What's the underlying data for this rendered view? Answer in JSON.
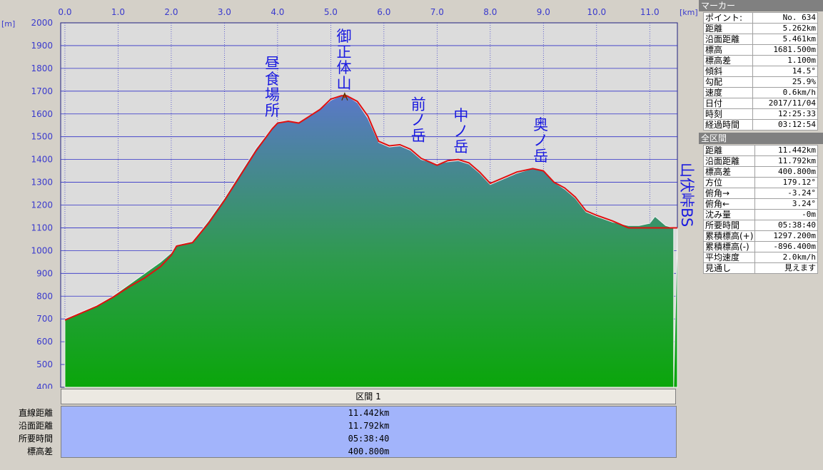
{
  "chart_data": {
    "type": "area",
    "x_unit": "[km]",
    "y_unit": "[m]",
    "xlim": [
      -0.08,
      11.52
    ],
    "ylim": [
      400,
      2000
    ],
    "x_ticks": [
      "0.0",
      "1.0",
      "2.0",
      "3.0",
      "4.0",
      "5.0",
      "6.0",
      "7.0",
      "8.0",
      "9.0",
      "10.0",
      "11.0"
    ],
    "y_ticks": [
      "2000",
      "1900",
      "1800",
      "1700",
      "1600",
      "1500",
      "1400",
      "1300",
      "1200",
      "1100",
      "1000",
      "900",
      "800",
      "700",
      "600",
      "500",
      "400"
    ],
    "grid": true,
    "series": [
      {
        "color": "#2e9e3a",
        "x": [
          0,
          0.3,
          0.6,
          0.9,
          1.2,
          1.5,
          1.8,
          2.0,
          2.1,
          2.4,
          2.7,
          3.0,
          3.3,
          3.6,
          3.9,
          4.0,
          4.2,
          4.4,
          4.6,
          4.8,
          5.0,
          5.2,
          5.3,
          5.5,
          5.7,
          5.9,
          6.1,
          6.3,
          6.5,
          6.7,
          7.0,
          7.2,
          7.4,
          7.6,
          7.8,
          8.0,
          8.2,
          8.5,
          8.8,
          9.0,
          9.2,
          9.4,
          9.6,
          9.8,
          10.0,
          10.3,
          10.6,
          10.8,
          11.0,
          11.1,
          11.3,
          11.45
        ],
        "y": [
          700,
          730,
          760,
          800,
          850,
          900,
          950,
          990,
          1025,
          1040,
          1130,
          1230,
          1340,
          1450,
          1540,
          1565,
          1570,
          1560,
          1590,
          1620,
          1660,
          1680,
          1680,
          1650,
          1580,
          1475,
          1455,
          1460,
          1440,
          1400,
          1380,
          1390,
          1395,
          1380,
          1340,
          1290,
          1310,
          1340,
          1360,
          1350,
          1300,
          1270,
          1230,
          1170,
          1150,
          1125,
          1110,
          1110,
          1120,
          1150,
          1110,
          1100
        ]
      },
      {
        "color": "#e01010",
        "x": [
          0,
          0.3,
          0.6,
          0.9,
          1.2,
          1.5,
          1.8,
          2.0,
          2.1,
          2.4,
          2.7,
          3.0,
          3.3,
          3.6,
          3.9,
          4.0,
          4.2,
          4.4,
          4.6,
          4.8,
          5.0,
          5.2,
          5.3,
          5.5,
          5.7,
          5.9,
          6.1,
          6.3,
          6.5,
          6.7,
          7.0,
          7.2,
          7.4,
          7.6,
          7.8,
          8.0,
          8.2,
          8.5,
          8.8,
          9.0,
          9.2,
          9.4,
          9.6,
          9.8,
          10.0,
          10.3,
          10.6,
          10.8,
          11.0,
          11.1,
          11.3,
          11.45
        ],
        "y": [
          695,
          725,
          755,
          795,
          840,
          880,
          930,
          980,
          1020,
          1035,
          1120,
          1220,
          1330,
          1440,
          1535,
          1560,
          1568,
          1560,
          1590,
          1620,
          1665,
          1680,
          1680,
          1655,
          1590,
          1480,
          1460,
          1465,
          1445,
          1405,
          1375,
          1395,
          1400,
          1385,
          1345,
          1295,
          1315,
          1345,
          1360,
          1350,
          1300,
          1275,
          1235,
          1175,
          1155,
          1130,
          1100,
          1100,
          1100,
          1100,
          1100,
          1100
        ]
      }
    ],
    "annotations": [
      {
        "text": "昼食場所",
        "x": 3.9,
        "y": 1580
      },
      {
        "text": "御正体山",
        "x": 5.25,
        "y": 1700
      },
      {
        "text": "前ノ岳",
        "x": 6.65,
        "y": 1470
      },
      {
        "text": "中ノ岳",
        "x": 7.45,
        "y": 1420
      },
      {
        "text": "奥ノ岳",
        "x": 8.95,
        "y": 1380
      }
    ],
    "end_label": "山伏峠BS"
  },
  "section": {
    "title": "区間 1",
    "labels": [
      "直線距離",
      "沿面距離",
      "所要時間",
      "標高差"
    ],
    "values": [
      "11.442km",
      "11.792km",
      "05:38:40",
      "400.800m"
    ]
  },
  "marker_panel": {
    "title": "マーカー",
    "rows": [
      {
        "k": "ポイント:",
        "v": "No. 634"
      },
      {
        "k": "距離",
        "v": "5.262km"
      },
      {
        "k": "沿面距離",
        "v": "5.461km"
      },
      {
        "k": "標高",
        "v": "1681.500m"
      },
      {
        "k": "標高差",
        "v": "1.100m"
      },
      {
        "k": "傾斜",
        "v": "14.5°"
      },
      {
        "k": "勾配",
        "v": "25.9%"
      },
      {
        "k": "速度",
        "v": "0.6km/h"
      },
      {
        "k": "日付",
        "v": "2017/11/04"
      },
      {
        "k": "時刻",
        "v": "12:25:33"
      },
      {
        "k": "経過時間",
        "v": "03:12:54"
      }
    ]
  },
  "total_panel": {
    "title": "全区間",
    "rows": [
      {
        "k": "距離",
        "v": "11.442km"
      },
      {
        "k": "沿面距離",
        "v": "11.792km"
      },
      {
        "k": "標高差",
        "v": "400.800m"
      },
      {
        "k": "方位",
        "v": "179.12°"
      },
      {
        "k": "俯角→",
        "v": "-3.24°"
      },
      {
        "k": "俯角←",
        "v": "3.24°"
      },
      {
        "k": "沈み量",
        "v": "-0m"
      },
      {
        "k": "所要時間",
        "v": "05:38:40"
      },
      {
        "k": "累積標高(+)",
        "v": "1297.200m"
      },
      {
        "k": "累積標高(-)",
        "v": "-896.400m"
      },
      {
        "k": "平均速度",
        "v": "2.0km/h"
      },
      {
        "k": "見通し",
        "v": "見えます"
      }
    ]
  }
}
